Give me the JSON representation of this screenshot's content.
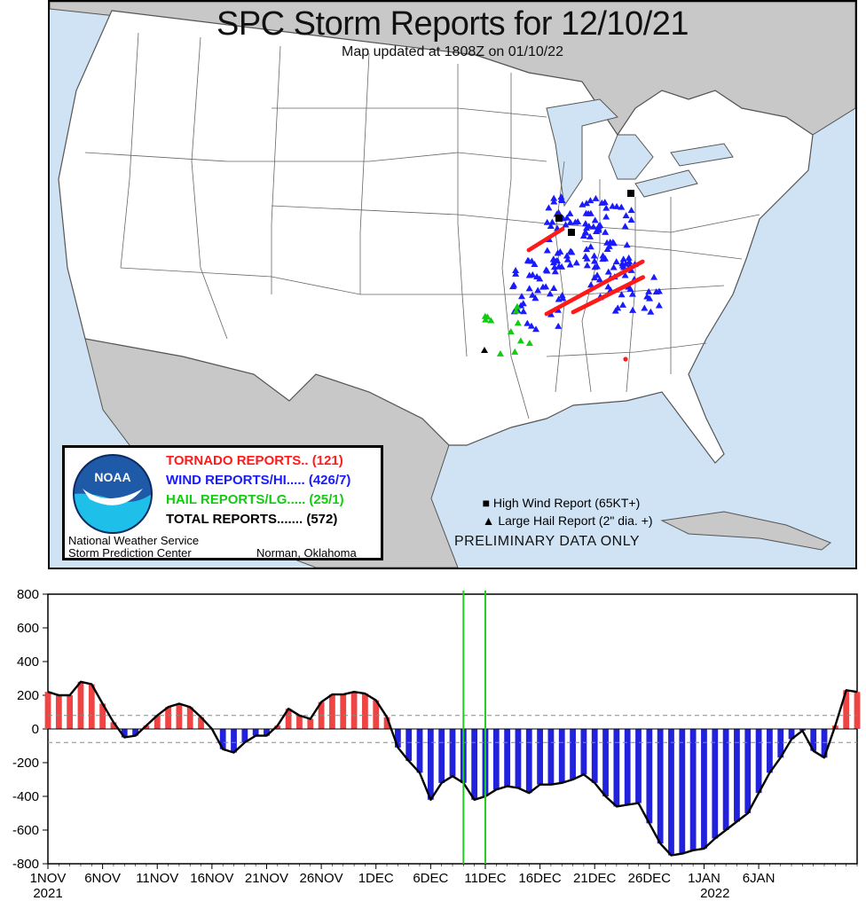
{
  "map": {
    "title": "SPC Storm Reports for 12/10/21",
    "subtitle": "Map updated at 1808Z on 01/10/22",
    "legend": {
      "tornado": "TORNADO REPORTS.. (121)",
      "wind": "WIND REPORTS/HI..... (426/7)",
      "hail": "HAIL REPORTS/LG..... (25/1)",
      "total": "TOTAL REPORTS....... (572)",
      "logo_text": "NOAA",
      "agency_line1": "National Weather Service",
      "agency_line2": "Storm Prediction Center",
      "location": "Norman, Oklahoma",
      "high_wind_key": "High Wind Report (65KT+)",
      "large_hail_key": "Large Hail Report (2\" dia. +)"
    },
    "disclaimer": "PRELIMINARY DATA ONLY",
    "colors": {
      "tornado": "#ff1a1a",
      "wind": "#1a1aff",
      "hail": "#11cc11",
      "significant": "#000000",
      "water": "#cfe3f5",
      "land": "#ffffff",
      "foreign_land": "#c8c8c8"
    }
  },
  "chart_data": {
    "type": "bar",
    "title": "",
    "xlabel": "",
    "ylabel": "",
    "ylim": [
      -800,
      800
    ],
    "yticks": [
      -800,
      -600,
      -400,
      -200,
      0,
      200,
      400,
      600,
      800
    ],
    "reference_lines": [
      80,
      -80
    ],
    "highlight_days": [
      "2021-12-09",
      "2021-12-11"
    ],
    "x_tick_labels": [
      "1NOV",
      "6NOV",
      "11NOV",
      "16NOV",
      "21NOV",
      "26NOV",
      "1DEC",
      "6DEC",
      "11DEC",
      "16DEC",
      "21DEC",
      "26DEC",
      "1JAN",
      "6JAN"
    ],
    "x_year_labels": [
      {
        "date": "2021-11-01",
        "label": "2021"
      },
      {
        "date": "2022-01-01",
        "label": "2022"
      }
    ],
    "start_date": "2021-11-01",
    "positive_color": "#ee4444",
    "negative_color": "#2222dd",
    "values": [
      220,
      200,
      200,
      280,
      265,
      150,
      40,
      -50,
      -40,
      20,
      80,
      130,
      150,
      130,
      70,
      0,
      -120,
      -140,
      -80,
      -40,
      -40,
      20,
      120,
      80,
      60,
      160,
      205,
      205,
      220,
      210,
      170,
      70,
      -110,
      -190,
      -260,
      -420,
      -320,
      -280,
      -320,
      -420,
      -400,
      -360,
      -340,
      -350,
      -380,
      -330,
      -330,
      -320,
      -300,
      -270,
      -320,
      -400,
      -460,
      -450,
      -440,
      -560,
      -680,
      -750,
      -740,
      -720,
      -710,
      -650,
      -600,
      -550,
      -500,
      -380,
      -260,
      -170,
      -60,
      -10,
      -130,
      -170,
      20,
      230,
      220
    ]
  }
}
